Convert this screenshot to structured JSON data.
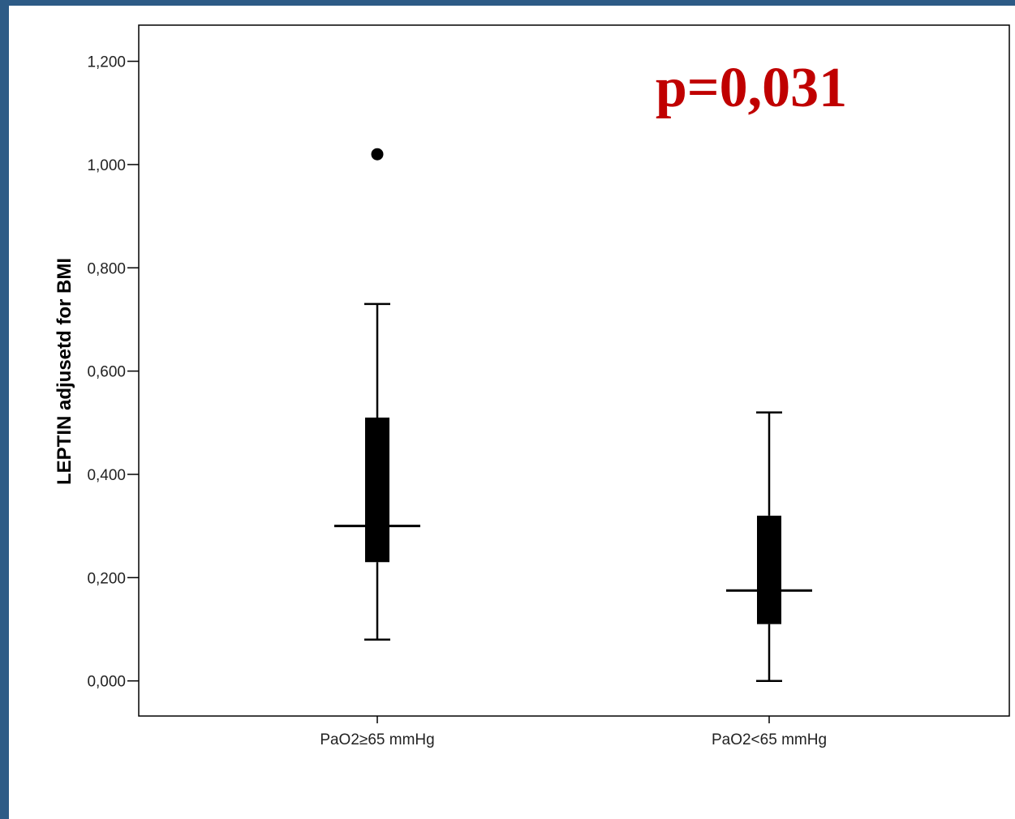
{
  "colors": {
    "frame": "#2d5b86",
    "background": "#ffffff",
    "ink": "#000000",
    "annotation": "#c00000"
  },
  "chart_data": {
    "type": "box",
    "title": "",
    "xlabel": "",
    "ylabel": "LEPTIN adjusetd for BMI",
    "ylim": [
      -0.068,
      1.27
    ],
    "yticks": [
      0.0,
      0.2,
      0.4,
      0.6,
      0.8,
      1.0,
      1.2
    ],
    "ytick_labels": [
      "0,000",
      "0,200",
      "0,400",
      "0,600",
      "0,800",
      "1,000",
      "1,200"
    ],
    "categories": [
      "PaO2≥65 mmHg",
      "PaO2<65 mmHg"
    ],
    "boxes": [
      {
        "min": 0.08,
        "q1": 0.23,
        "median": 0.3,
        "q3": 0.51,
        "max": 0.73,
        "outliers": [
          1.02
        ]
      },
      {
        "min": 0.0,
        "q1": 0.11,
        "median": 0.175,
        "q3": 0.32,
        "max": 0.52,
        "outliers": []
      }
    ],
    "annotation": "p=0,031",
    "grid": false,
    "legend": "none"
  }
}
